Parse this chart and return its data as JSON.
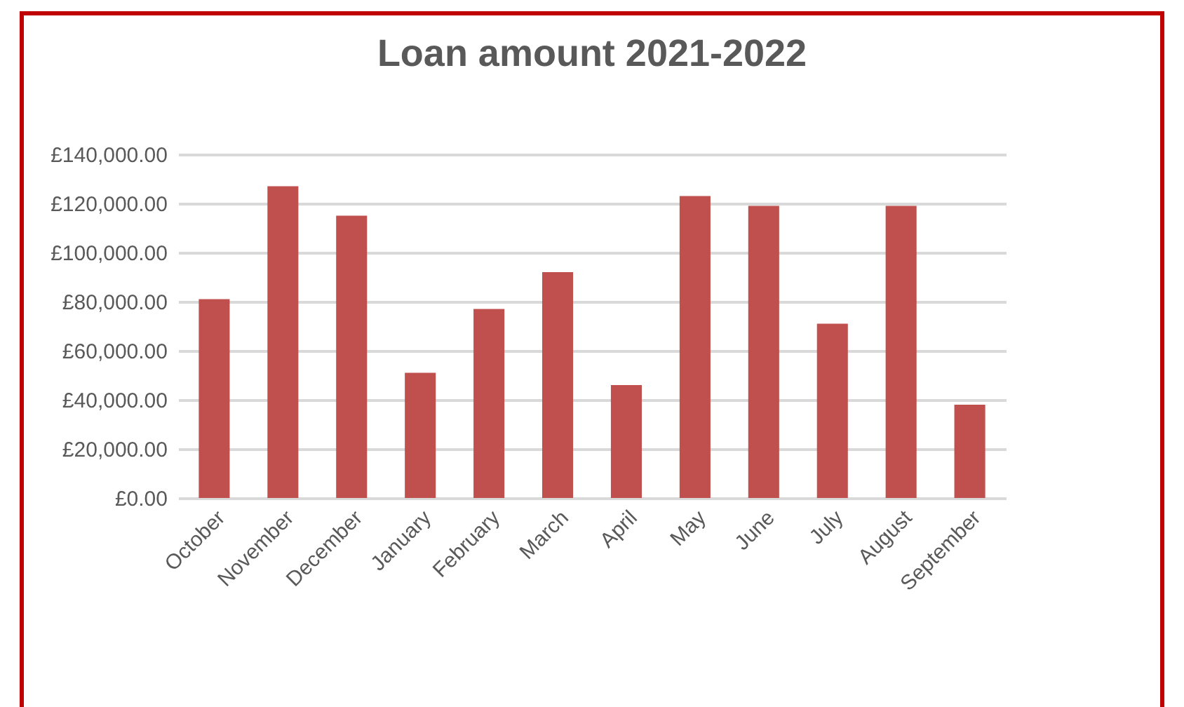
{
  "chart_data": {
    "type": "bar",
    "title": "Loan amount 2021-2022",
    "categories": [
      "October",
      "November",
      "December",
      "January",
      "February",
      "March",
      "April",
      "May",
      "June",
      "July",
      "August",
      "September"
    ],
    "values": [
      81000,
      127000,
      115000,
      51000,
      77000,
      92000,
      46000,
      123000,
      119000,
      71000,
      119000,
      38000
    ],
    "color": "#c0504d",
    "ylim": [
      0,
      140000
    ],
    "yticks": [
      {
        "value": 0,
        "label": "£0.00"
      },
      {
        "value": 20000,
        "label": "£20,000.00"
      },
      {
        "value": 40000,
        "label": "£40,000.00"
      },
      {
        "value": 60000,
        "label": "£60,000.00"
      },
      {
        "value": 80000,
        "label": "£80,000.00"
      },
      {
        "value": 100000,
        "label": "£100,000.00"
      },
      {
        "value": 120000,
        "label": "£120,000.00"
      },
      {
        "value": 140000,
        "label": "£140,000.00"
      }
    ],
    "grid": "y"
  }
}
